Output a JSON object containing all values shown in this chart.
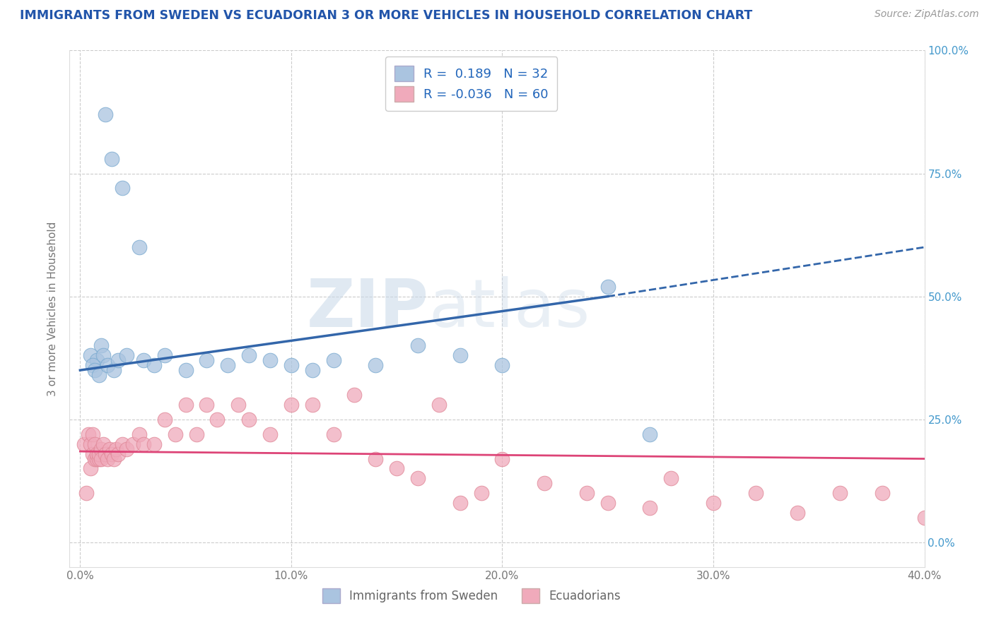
{
  "title": "IMMIGRANTS FROM SWEDEN VS ECUADORIAN 3 OR MORE VEHICLES IN HOUSEHOLD CORRELATION CHART",
  "source": "Source: ZipAtlas.com",
  "ylabel": "3 or more Vehicles in Household",
  "x_tick_labels": [
    "0.0%",
    "10.0%",
    "20.0%",
    "30.0%",
    "40.0%"
  ],
  "x_tick_vals": [
    0.0,
    10.0,
    20.0,
    30.0,
    40.0
  ],
  "y_tick_labels": [
    "0.0%",
    "25.0%",
    "50.0%",
    "75.0%",
    "100.0%"
  ],
  "y_tick_vals": [
    0.0,
    25.0,
    50.0,
    75.0,
    100.0
  ],
  "xlim": [
    -0.5,
    40.0
  ],
  "ylim": [
    -5.0,
    100.0
  ],
  "legend_label1": "Immigrants from Sweden",
  "legend_label2": "Ecuadorians",
  "R1": "0.189",
  "N1": "32",
  "R2": "-0.036",
  "N2": "60",
  "blue_color": "#aac4e0",
  "blue_edge_color": "#7aaad0",
  "pink_color": "#f0aabb",
  "pink_edge_color": "#e08898",
  "blue_line_color": "#3366aa",
  "pink_line_color": "#dd4477",
  "title_color": "#2255aa",
  "source_color": "#999999",
  "legend_text_color": "#2266bb",
  "watermark_zip": "ZIP",
  "watermark_atlas": "atlas",
  "background_color": "#ffffff",
  "grid_color": "#cccccc",
  "blue_scatter_x": [
    1.2,
    1.5,
    2.0,
    2.8,
    1.0,
    0.5,
    0.8,
    0.6,
    0.7,
    0.9,
    1.1,
    1.3,
    1.6,
    1.8,
    2.2,
    3.0,
    3.5,
    4.0,
    5.0,
    6.0,
    7.0,
    8.0,
    9.0,
    10.0,
    11.0,
    12.0,
    14.0,
    16.0,
    18.0,
    20.0,
    25.0,
    27.0
  ],
  "blue_scatter_y": [
    87.0,
    78.0,
    72.0,
    60.0,
    40.0,
    38.0,
    37.0,
    36.0,
    35.0,
    34.0,
    38.0,
    36.0,
    35.0,
    37.0,
    38.0,
    37.0,
    36.0,
    38.0,
    35.0,
    37.0,
    36.0,
    38.0,
    37.0,
    36.0,
    35.0,
    37.0,
    36.0,
    40.0,
    38.0,
    36.0,
    52.0,
    22.0
  ],
  "pink_scatter_x": [
    0.2,
    0.3,
    0.4,
    0.5,
    0.5,
    0.6,
    0.6,
    0.7,
    0.7,
    0.8,
    0.8,
    0.9,
    0.9,
    1.0,
    1.0,
    1.1,
    1.2,
    1.3,
    1.4,
    1.5,
    1.6,
    1.7,
    1.8,
    2.0,
    2.2,
    2.5,
    2.8,
    3.0,
    3.5,
    4.0,
    4.5,
    5.0,
    5.5,
    6.0,
    6.5,
    7.5,
    8.0,
    9.0,
    10.0,
    11.0,
    12.0,
    13.0,
    14.0,
    15.0,
    16.0,
    17.0,
    18.0,
    19.0,
    20.0,
    22.0,
    24.0,
    25.0,
    27.0,
    28.0,
    30.0,
    32.0,
    34.0,
    36.0,
    38.0,
    40.0
  ],
  "pink_scatter_y": [
    20.0,
    10.0,
    22.0,
    15.0,
    20.0,
    18.0,
    22.0,
    17.0,
    20.0,
    17.0,
    18.0,
    17.0,
    18.0,
    19.0,
    17.0,
    20.0,
    18.0,
    17.0,
    19.0,
    18.0,
    17.0,
    19.0,
    18.0,
    20.0,
    19.0,
    20.0,
    22.0,
    20.0,
    20.0,
    25.0,
    22.0,
    28.0,
    22.0,
    28.0,
    25.0,
    28.0,
    25.0,
    22.0,
    28.0,
    28.0,
    22.0,
    30.0,
    17.0,
    15.0,
    13.0,
    28.0,
    8.0,
    10.0,
    17.0,
    12.0,
    10.0,
    8.0,
    7.0,
    13.0,
    8.0,
    10.0,
    6.0,
    10.0,
    10.0,
    5.0
  ],
  "blue_line_x0": 0.0,
  "blue_line_y0": 35.0,
  "blue_line_x1": 25.0,
  "blue_line_y1": 50.0,
  "blue_dash_x0": 25.0,
  "blue_dash_y0": 50.0,
  "blue_dash_x1": 40.0,
  "blue_dash_y1": 60.0,
  "pink_line_x0": 0.0,
  "pink_line_y0": 18.5,
  "pink_line_x1": 40.0,
  "pink_line_y1": 17.0
}
